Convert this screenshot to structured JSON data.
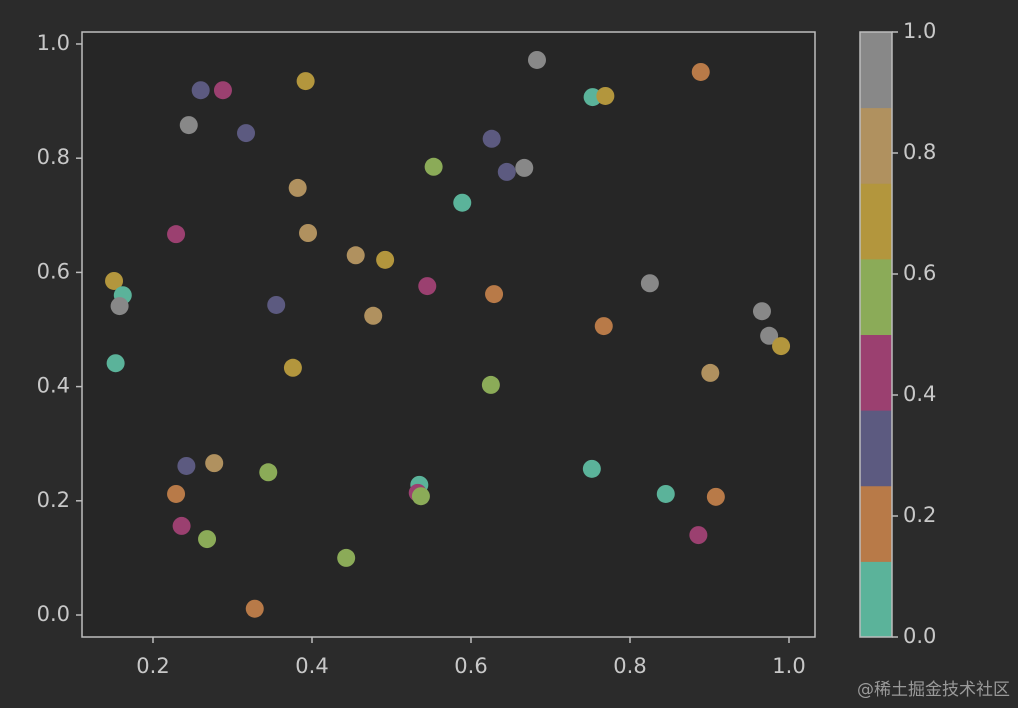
{
  "chart_data": {
    "type": "scatter",
    "x": [
      0.683,
      0.889,
      0.26,
      0.288,
      0.392,
      0.753,
      0.769,
      0.245,
      0.317,
      0.626,
      0.667,
      0.645,
      0.553,
      0.382,
      0.589,
      0.229,
      0.395,
      0.455,
      0.492,
      0.151,
      0.162,
      0.158,
      0.545,
      0.629,
      0.825,
      0.355,
      0.477,
      0.767,
      0.966,
      0.975,
      0.99,
      0.153,
      0.376,
      0.901,
      0.625,
      0.242,
      0.277,
      0.345,
      0.752,
      0.535,
      0.533,
      0.537,
      0.229,
      0.845,
      0.908,
      0.236,
      0.268,
      0.886,
      0.443,
      0.328
    ],
    "values": [
      0.972,
      0.951,
      0.919,
      0.919,
      0.935,
      0.907,
      0.909,
      0.858,
      0.844,
      0.834,
      0.783,
      0.776,
      0.785,
      0.748,
      0.722,
      0.667,
      0.669,
      0.63,
      0.622,
      0.585,
      0.56,
      0.541,
      0.576,
      0.562,
      0.581,
      0.543,
      0.524,
      0.506,
      0.532,
      0.489,
      0.471,
      0.441,
      0.433,
      0.424,
      0.403,
      0.261,
      0.266,
      0.25,
      0.256,
      0.228,
      0.214,
      0.208,
      0.212,
      0.212,
      0.207,
      0.156,
      0.133,
      0.14,
      0.1,
      0.011
    ],
    "c": [
      0.94,
      0.19,
      0.31,
      0.44,
      0.69,
      0.06,
      0.69,
      0.94,
      0.31,
      0.31,
      0.94,
      0.31,
      0.56,
      0.81,
      0.06,
      0.44,
      0.81,
      0.81,
      0.69,
      0.69,
      0.06,
      0.94,
      0.44,
      0.19,
      0.94,
      0.31,
      0.81,
      0.19,
      0.94,
      0.94,
      0.69,
      0.06,
      0.69,
      0.81,
      0.56,
      0.31,
      0.81,
      0.56,
      0.06,
      0.06,
      0.44,
      0.56,
      0.19,
      0.06,
      0.19,
      0.44,
      0.56,
      0.44,
      0.56,
      0.19
    ],
    "colormap": [
      "#5bb39a",
      "#b87a48",
      "#5c5a80",
      "#9b4070",
      "#8bab58",
      "#b3963d",
      "#b0915f",
      "#888888"
    ],
    "clim": [
      0,
      1
    ],
    "cticks": [
      {
        "value": 0,
        "label": "0.0"
      },
      0.2,
      0.4,
      0.6,
      0.8,
      {
        "value": 1,
        "label": "1.0"
      }
    ],
    "xlim": [
      0.1107,
      1.0327
    ],
    "xticks": [
      0.2,
      0.4,
      0.6,
      0.8,
      {
        "value": 1,
        "label": "1.0"
      }
    ],
    "ylim": [
      -0.0385,
      1.021
    ],
    "yticks": [
      {
        "value": 0,
        "label": "0.0"
      },
      0.2,
      0.4,
      0.6,
      0.8,
      {
        "value": 1,
        "label": "1.0"
      }
    ],
    "watermark": "@稀土掘金技术社区"
  }
}
